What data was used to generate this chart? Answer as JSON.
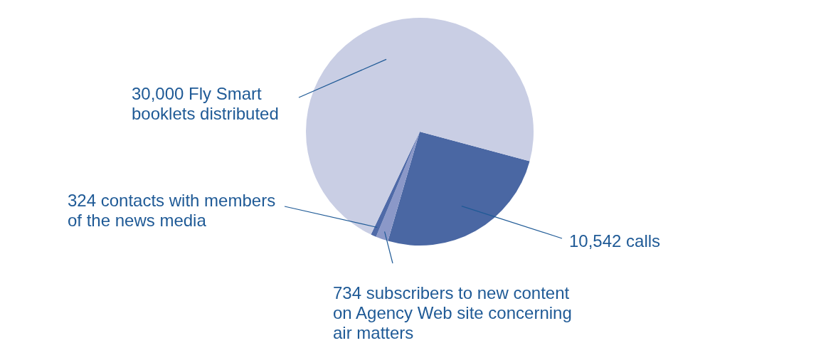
{
  "chart_data": {
    "type": "pie",
    "categories": [
      "10,542 calls",
      "734 subscribers to new content on Agency Web site concerning air matters",
      "324 contacts with members of the news media",
      "30,000 Fly Smart booklets distributed"
    ],
    "values": [
      10542,
      734,
      324,
      30000
    ],
    "colors": [
      "#4a67a3",
      "#8b98c8",
      "#4f6aa8",
      "#c9cee4"
    ]
  }
}
